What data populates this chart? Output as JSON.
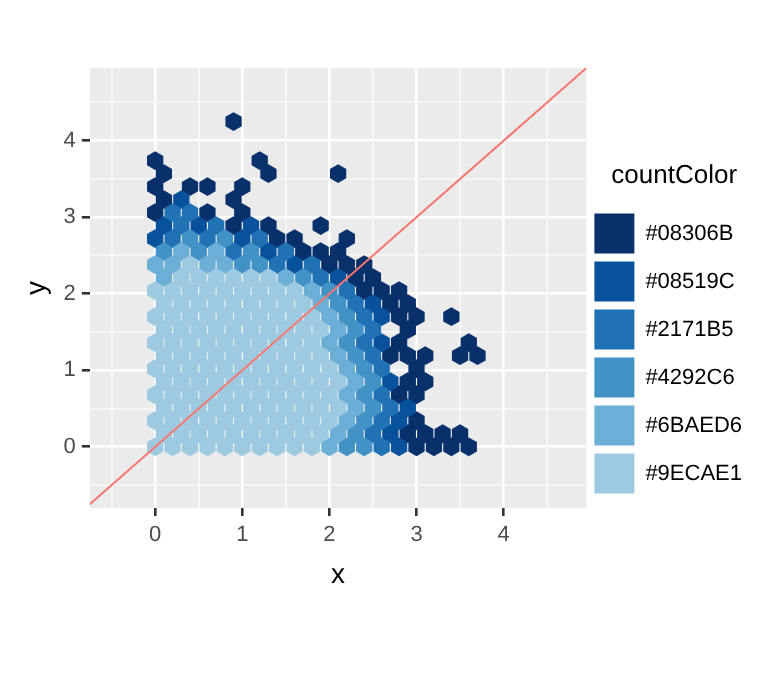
{
  "chart_data": {
    "type": "scatter",
    "xlabel": "x",
    "ylabel": "y",
    "legend_title": "countColor",
    "legend": "right",
    "grid": true,
    "xlim": [
      -0.75,
      4.95
    ],
    "ylim": [
      -0.8,
      4.95
    ],
    "xticks": [
      {
        "value": -0.5,
        "label": null
      },
      0,
      {
        "value": 0.5,
        "label": null
      },
      1,
      {
        "value": 1.5,
        "label": null
      },
      2,
      {
        "value": 2.5,
        "label": null
      },
      3,
      {
        "value": 3.5,
        "label": null
      },
      4,
      {
        "value": 4.5,
        "label": null
      }
    ],
    "yticks": [
      {
        "value": -0.5,
        "label": null
      },
      0,
      {
        "value": 0.5,
        "label": null
      },
      1,
      {
        "value": 1.5,
        "label": null
      },
      2,
      {
        "value": 2.5,
        "label": null
      },
      3,
      {
        "value": 3.5,
        "label": null
      },
      4,
      {
        "value": 4.5,
        "label": null
      }
    ],
    "series": [
      {
        "name": "#08306B",
        "color": "#08306B",
        "x": [
          3,
          3.2,
          3.4,
          3.6,
          2.9,
          3.1,
          3.3,
          3.5,
          3,
          2.8,
          3,
          2.9,
          3.1,
          3,
          2.7,
          2.9,
          3.1,
          3.5,
          3.7,
          2.8,
          3.6,
          2.9,
          2.8,
          3,
          3.4,
          2.7,
          2.9,
          2.4,
          2.6,
          2.8,
          2.3,
          2.5,
          2,
          2.2,
          2.4,
          1.7,
          1.9,
          2.1,
          1.4,
          1.6,
          2.2,
          0.9,
          1.3,
          1.9,
          0,
          0.6,
          1,
          0.1,
          0.9,
          0,
          0.4,
          0.6,
          1,
          0.1,
          1.3,
          2.1,
          0,
          1.2,
          0.9
        ],
        "values": [
          0,
          0,
          0,
          0,
          0.17,
          0.17,
          0.17,
          0.17,
          0.34,
          0.68,
          0.68,
          0.85,
          0.85,
          1.02,
          1.19,
          1.19,
          1.19,
          1.19,
          1.19,
          1.36,
          1.36,
          1.53,
          1.7,
          1.7,
          1.7,
          1.87,
          1.87,
          2.04,
          2.04,
          2.04,
          2.21,
          2.21,
          2.38,
          2.38,
          2.38,
          2.55,
          2.55,
          2.55,
          2.72,
          2.72,
          2.72,
          2.89,
          2.89,
          2.89,
          3.06,
          3.06,
          3.06,
          3.23,
          3.23,
          3.4,
          3.4,
          3.4,
          3.4,
          3.57,
          3.57,
          3.57,
          3.74,
          3.74,
          4.25
        ]
      },
      {
        "name": "#08519C",
        "color": "#08519C",
        "x": [
          2.8,
          2.7,
          2.8,
          2.9,
          2.7,
          2.6,
          2.6,
          2.5,
          2.1,
          1.6,
          1.3,
          0,
          1,
          0.1,
          0.5,
          1.1,
          0.3
        ],
        "values": [
          0,
          0.17,
          0.34,
          0.51,
          0.85,
          1.36,
          1.7,
          1.87,
          2.21,
          2.38,
          2.55,
          2.72,
          2.72,
          2.89,
          2.89,
          2.89,
          3.23
        ]
      },
      {
        "name": "#2171B5",
        "color": "#2171B5",
        "x": [
          2.6,
          2.5,
          2.6,
          2.7,
          2.6,
          2.6,
          2.5,
          2.4,
          2.5,
          2.4,
          2.3,
          2.2,
          1.9,
          1.4,
          1.8,
          0.9,
          1.5,
          0.2,
          0.6,
          1.2,
          0.3,
          0.7,
          0.2,
          0.4
        ],
        "values": [
          0,
          0.17,
          0.34,
          0.51,
          0.68,
          1.02,
          1.19,
          1.36,
          1.53,
          1.7,
          1.87,
          2.04,
          2.21,
          2.38,
          2.38,
          2.55,
          2.55,
          2.72,
          2.72,
          2.72,
          2.89,
          2.89,
          3.06,
          3.06
        ]
      },
      {
        "name": "#4292C6",
        "color": "#4292C6",
        "x": [
          2.2,
          2.4,
          2.3,
          2.4,
          2.5,
          2.4,
          2.5,
          2.4,
          2.3,
          2.2,
          2.3,
          2.2,
          2.1,
          2,
          1.7,
          1,
          1.2,
          0.1,
          0.5,
          1.1,
          0.4,
          0.8
        ],
        "values": [
          0,
          0,
          0.17,
          0.34,
          0.51,
          0.68,
          0.85,
          1.02,
          1.19,
          1.36,
          1.53,
          1.7,
          1.87,
          2.04,
          2.21,
          2.38,
          2.38,
          2.55,
          2.55,
          2.55,
          2.72,
          2.72
        ]
      },
      {
        "name": "#6BAED6",
        "color": "#6BAED6",
        "x": [
          2,
          2.1,
          2.2,
          2.3,
          2.2,
          2.3,
          2.2,
          2.1,
          2,
          2.1,
          2,
          1.9,
          1.8,
          0.1,
          1.5,
          0,
          0.2,
          0.6,
          0.8,
          0.3,
          0.7
        ],
        "values": [
          0,
          0.17,
          0.34,
          0.51,
          0.68,
          0.85,
          1.02,
          1.19,
          1.36,
          1.53,
          1.7,
          1.87,
          2.04,
          2.21,
          2.21,
          2.38,
          2.38,
          2.38,
          2.38,
          2.55,
          2.55
        ]
      },
      {
        "name": "#9ECAE1",
        "color": "#9ECAE1",
        "x": [
          0,
          0.2,
          0.4,
          0.6,
          0.8,
          1,
          1.2,
          1.4,
          1.6,
          1.8,
          0.1,
          0.3,
          0.5,
          0.7,
          0.9,
          1.1,
          1.3,
          1.5,
          1.7,
          1.9,
          0,
          0.2,
          0.4,
          0.6,
          0.8,
          1,
          1.2,
          1.4,
          1.6,
          1.8,
          2,
          0.1,
          0.3,
          0.5,
          0.7,
          0.9,
          1.1,
          1.3,
          1.5,
          1.7,
          1.9,
          2.1,
          0,
          0.2,
          0.4,
          0.6,
          0.8,
          1,
          1.2,
          1.4,
          1.6,
          1.8,
          2,
          0.1,
          0.3,
          0.5,
          0.7,
          0.9,
          1.1,
          1.3,
          1.5,
          1.7,
          1.9,
          2.1,
          0,
          0.2,
          0.4,
          0.6,
          0.8,
          1,
          1.2,
          1.4,
          1.6,
          1.8,
          2,
          0.1,
          0.3,
          0.5,
          0.7,
          0.9,
          1.1,
          1.3,
          1.5,
          1.7,
          1.9,
          0,
          0.2,
          0.4,
          0.6,
          0.8,
          1,
          1.2,
          1.4,
          1.6,
          1.8,
          0.1,
          0.3,
          0.5,
          0.7,
          0.9,
          1.1,
          1.3,
          1.5,
          1.7,
          1.9,
          0,
          0.2,
          0.4,
          0.6,
          0.8,
          1,
          1.2,
          1.4,
          1.6,
          1.8,
          0.1,
          0.3,
          0.5,
          0.7,
          0.9,
          1.1,
          1.3,
          1.5,
          1.7,
          0,
          0.2,
          0.4,
          0.6,
          0.8,
          1,
          1.2,
          1.4,
          1.6,
          0.3,
          0.5,
          0.7,
          0.9,
          1.1,
          1.3,
          0.4
        ],
        "values": [
          0,
          0,
          0,
          0,
          0,
          0,
          0,
          0,
          0,
          0,
          0.17,
          0.17,
          0.17,
          0.17,
          0.17,
          0.17,
          0.17,
          0.17,
          0.17,
          0.17,
          0.34,
          0.34,
          0.34,
          0.34,
          0.34,
          0.34,
          0.34,
          0.34,
          0.34,
          0.34,
          0.34,
          0.51,
          0.51,
          0.51,
          0.51,
          0.51,
          0.51,
          0.51,
          0.51,
          0.51,
          0.51,
          0.51,
          0.68,
          0.68,
          0.68,
          0.68,
          0.68,
          0.68,
          0.68,
          0.68,
          0.68,
          0.68,
          0.68,
          0.85,
          0.85,
          0.85,
          0.85,
          0.85,
          0.85,
          0.85,
          0.85,
          0.85,
          0.85,
          0.85,
          1.02,
          1.02,
          1.02,
          1.02,
          1.02,
          1.02,
          1.02,
          1.02,
          1.02,
          1.02,
          1.02,
          1.19,
          1.19,
          1.19,
          1.19,
          1.19,
          1.19,
          1.19,
          1.19,
          1.19,
          1.19,
          1.36,
          1.36,
          1.36,
          1.36,
          1.36,
          1.36,
          1.36,
          1.36,
          1.36,
          1.36,
          1.53,
          1.53,
          1.53,
          1.53,
          1.53,
          1.53,
          1.53,
          1.53,
          1.53,
          1.53,
          1.7,
          1.7,
          1.7,
          1.7,
          1.7,
          1.7,
          1.7,
          1.7,
          1.7,
          1.7,
          1.87,
          1.87,
          1.87,
          1.87,
          1.87,
          1.87,
          1.87,
          1.87,
          1.87,
          2.04,
          2.04,
          2.04,
          2.04,
          2.04,
          2.04,
          2.04,
          2.04,
          2.04,
          2.21,
          2.21,
          2.21,
          2.21,
          2.21,
          2.21,
          2.38
        ]
      },
      {
        "type": "line",
        "color": "#F8766D",
        "x": [
          -0.75,
          4.95
        ],
        "values": [
          -0.75,
          4.95
        ]
      }
    ]
  }
}
